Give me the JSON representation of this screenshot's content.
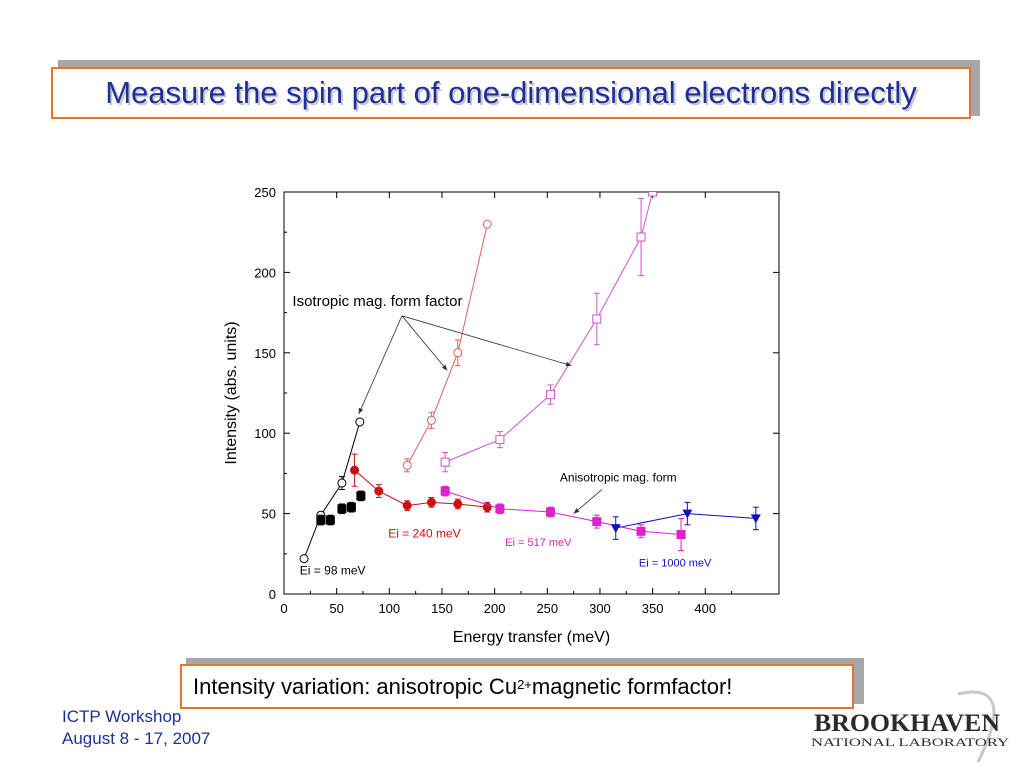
{
  "slide": {
    "title": "Measure the spin part of one-dimensional electrons directly",
    "caption": {
      "before": "Intensity variation: anisotropic Cu",
      "sup": "2+",
      "after": " magnetic formfactor!"
    },
    "footer": {
      "line1": "ICTP Workshop",
      "line2": "August 8 - 17, 2007"
    },
    "logo": {
      "line1": "BROOKHAVEN",
      "line2": "NATIONAL LABORATORY"
    }
  },
  "colors": {
    "title": "#1f2f99",
    "box_border": "#e8742a",
    "ei98": "#000000",
    "ei240": "#cc1111",
    "ei517": "#dd22cc",
    "ei1000": "#1111bb",
    "iso240": "#e06060",
    "iso517": "#cc55cc"
  },
  "chart_data": {
    "type": "scatter",
    "xlabel": "Energy transfer (meV)",
    "ylabel": "Intensity (abs. units)",
    "xlim": [
      0,
      470
    ],
    "ylim": [
      0,
      250
    ],
    "xticks": [
      0,
      50,
      100,
      150,
      200,
      250,
      300,
      350,
      400
    ],
    "yticks": [
      0,
      50,
      100,
      150,
      200,
      250
    ],
    "grid": false,
    "series": [
      {
        "name": "Ei = 98 meV",
        "marker": "open-circle",
        "color": "#000000",
        "line": true,
        "points": [
          [
            19,
            22
          ],
          [
            35,
            49
          ],
          [
            55,
            69
          ],
          [
            72,
            107
          ]
        ],
        "errors": [
          0,
          2,
          4,
          0
        ]
      },
      {
        "name": "Ei = 98 meV",
        "marker": "filled-square",
        "color": "#000000",
        "line": false,
        "points": [
          [
            35,
            46
          ],
          [
            44,
            46
          ],
          [
            55,
            53
          ],
          [
            64,
            54
          ],
          [
            73,
            61
          ]
        ],
        "errors": [
          3,
          3,
          3,
          3,
          3
        ]
      },
      {
        "name": "Ei = 240 meV",
        "marker": "open-circle",
        "color": "#e06060",
        "line": true,
        "points": [
          [
            117,
            80
          ],
          [
            140,
            108
          ],
          [
            165,
            150
          ],
          [
            193,
            230
          ]
        ],
        "errors": [
          4,
          5,
          8,
          0
        ]
      },
      {
        "name": "Ei = 240 meV",
        "marker": "filled-circle",
        "color": "#cc1111",
        "line": true,
        "points": [
          [
            67,
            77
          ],
          [
            90,
            64
          ],
          [
            117,
            55
          ],
          [
            140,
            57
          ],
          [
            165,
            56
          ],
          [
            193,
            54
          ]
        ],
        "errors": [
          10,
          4,
          3,
          3,
          3,
          3
        ]
      },
      {
        "name": "Ei = 517 meV",
        "marker": "open-square",
        "color": "#cc55cc",
        "line": true,
        "points": [
          [
            153,
            82
          ],
          [
            205,
            96
          ],
          [
            253,
            124
          ],
          [
            297,
            171
          ],
          [
            339,
            222
          ],
          [
            350,
            250
          ]
        ],
        "errors": [
          6,
          5,
          6,
          16,
          24,
          0
        ]
      },
      {
        "name": "Ei = 517 meV",
        "marker": "filled-square",
        "color": "#dd22cc",
        "line": true,
        "points": [
          [
            153,
            64
          ],
          [
            205,
            53
          ],
          [
            253,
            51
          ],
          [
            297,
            45
          ],
          [
            339,
            39
          ],
          [
            377,
            37
          ]
        ],
        "errors": [
          3,
          3,
          3,
          4,
          4,
          10
        ]
      },
      {
        "name": "Ei = 1000 meV",
        "marker": "filled-triangle-down",
        "color": "#1111bb",
        "line": true,
        "points": [
          [
            315,
            41
          ],
          [
            383,
            50
          ],
          [
            448,
            47
          ]
        ],
        "errors": [
          7,
          7,
          7
        ]
      }
    ],
    "annotations": [
      {
        "text": "Isotropic mag. form factor",
        "targets": [
          [
            71,
            112
          ],
          [
            155,
            139
          ],
          [
            273,
            142
          ]
        ]
      },
      {
        "text": "Anisotropic mag. form",
        "targets": [
          [
            275,
            50
          ]
        ]
      }
    ],
    "series_labels": [
      {
        "text": "Ei = 98 meV",
        "color": "#000000"
      },
      {
        "text": "Ei = 240 meV",
        "color": "#cc1111"
      },
      {
        "text": "Ei = 517 meV",
        "color": "#dd22cc"
      },
      {
        "text": "Ei = 1000 meV",
        "color": "#1111bb"
      }
    ]
  }
}
